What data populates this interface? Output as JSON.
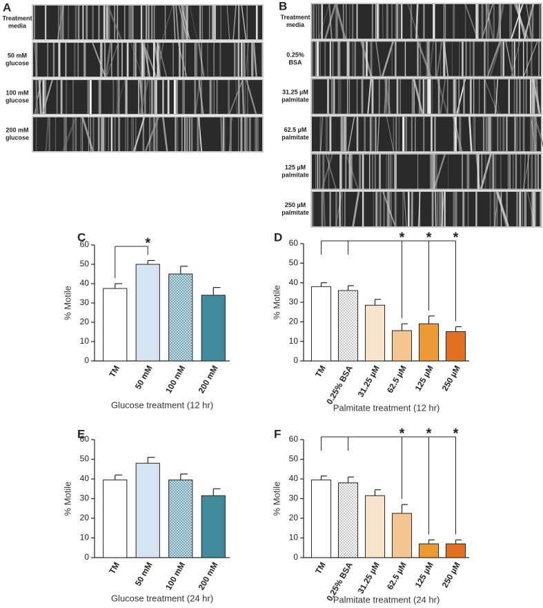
{
  "kymographs": [
    {
      "panel": "A",
      "rows": [
        {
          "label": [
            "Treatment",
            "media"
          ]
        },
        {
          "label": [
            "50 mM",
            "glucose"
          ]
        },
        {
          "label": [
            "100 mM",
            "glucose"
          ]
        },
        {
          "label": [
            "200 mM",
            "glucose"
          ]
        }
      ]
    },
    {
      "panel": "B",
      "rows": [
        {
          "label": [
            "Treatment",
            "media"
          ]
        },
        {
          "label": [
            "0.25%",
            "BSA"
          ]
        },
        {
          "label": [
            "31.25 µM",
            "palmitate"
          ]
        },
        {
          "label": [
            "62.5 µM",
            "palmitate"
          ]
        },
        {
          "label": [
            "125 µM",
            "palmitate"
          ]
        },
        {
          "label": [
            "250 µM",
            "palmitate"
          ]
        }
      ]
    }
  ],
  "chart_data": [
    {
      "type": "bar",
      "panel": "C",
      "y_label": "% Motile",
      "x_label": "Glucose treatment (12 hr)",
      "categories": [
        "TM",
        "50 mM",
        "100 mM",
        "200 mM"
      ],
      "values": [
        37.5,
        50,
        45,
        34
      ],
      "errors": [
        2.5,
        2,
        4,
        4
      ],
      "colors": [
        "#ffffff",
        "#d5e3f3",
        "#cfe0e6",
        "#3f8a9b"
      ],
      "patterns": [
        "none",
        "none",
        "crosshatch",
        "none"
      ],
      "ylim": [
        0,
        60
      ],
      "yticks": [
        0,
        10,
        20,
        30,
        40,
        50,
        60
      ],
      "significance": [
        {
          "label": "*",
          "from": [
            0
          ],
          "to": 1
        }
      ]
    },
    {
      "type": "bar",
      "panel": "D",
      "y_label": "% Motile",
      "x_label": "Palmitate treatment (12 hr)",
      "categories": [
        "TM",
        "0.25% BSA",
        "31.25 µM",
        "62.5 µM",
        "125 µM",
        "250 µM"
      ],
      "values": [
        38,
        36,
        28.5,
        15.5,
        19,
        15
      ],
      "errors": [
        2,
        2.5,
        3,
        3.5,
        4,
        2.5
      ],
      "colors": [
        "#ffffff",
        "#ffffff",
        "#f8e3cb",
        "#f3c590",
        "#ec9b34",
        "#e2711f"
      ],
      "patterns": [
        "none",
        "dots",
        "none",
        "none",
        "none",
        "none"
      ],
      "ylim": [
        0,
        60
      ],
      "yticks": [
        0,
        10,
        20,
        30,
        40,
        50,
        60
      ],
      "significance": [
        {
          "label": "*",
          "from": [
            0,
            1
          ],
          "to": 3
        },
        {
          "label": "*",
          "from": [
            0,
            1
          ],
          "to": 4
        },
        {
          "label": "*",
          "from": [
            0,
            1
          ],
          "to": 5
        }
      ]
    },
    {
      "type": "bar",
      "panel": "E",
      "y_label": "% Motile",
      "x_label": "Glucose treatment (24 hr)",
      "categories": [
        "TM",
        "50 mM",
        "100 mM",
        "200 mM"
      ],
      "values": [
        39.5,
        48,
        39.5,
        31.5
      ],
      "errors": [
        2.5,
        3,
        3,
        3.5
      ],
      "colors": [
        "#ffffff",
        "#d5e3f3",
        "#cfe0e6",
        "#3f8a9b"
      ],
      "patterns": [
        "none",
        "none",
        "crosshatch",
        "none"
      ],
      "ylim": [
        0,
        60
      ],
      "yticks": [
        0,
        10,
        20,
        30,
        40,
        50,
        60
      ]
    },
    {
      "type": "bar",
      "panel": "F",
      "y_label": "% Motile",
      "x_label": "Palmitate treatment (24 hr)",
      "categories": [
        "TM",
        "0.25% BSA",
        "31.25 µM",
        "62.5 µM",
        "125 µM",
        "250 µM"
      ],
      "values": [
        39.5,
        38,
        31.5,
        22.5,
        7,
        7
      ],
      "errors": [
        2,
        3,
        3,
        4.5,
        2,
        2
      ],
      "colors": [
        "#ffffff",
        "#ffffff",
        "#f8e3cb",
        "#f3c590",
        "#ec9b34",
        "#e2711f"
      ],
      "patterns": [
        "none",
        "dots",
        "none",
        "none",
        "none",
        "none"
      ],
      "ylim": [
        0,
        60
      ],
      "yticks": [
        0,
        10,
        20,
        30,
        40,
        50,
        60
      ],
      "significance": [
        {
          "label": "*",
          "from": [
            0,
            1
          ],
          "to": 3
        },
        {
          "label": "*",
          "from": [
            0,
            1
          ],
          "to": 4
        },
        {
          "label": "*",
          "from": [
            0,
            1
          ],
          "to": 5
        }
      ]
    }
  ]
}
